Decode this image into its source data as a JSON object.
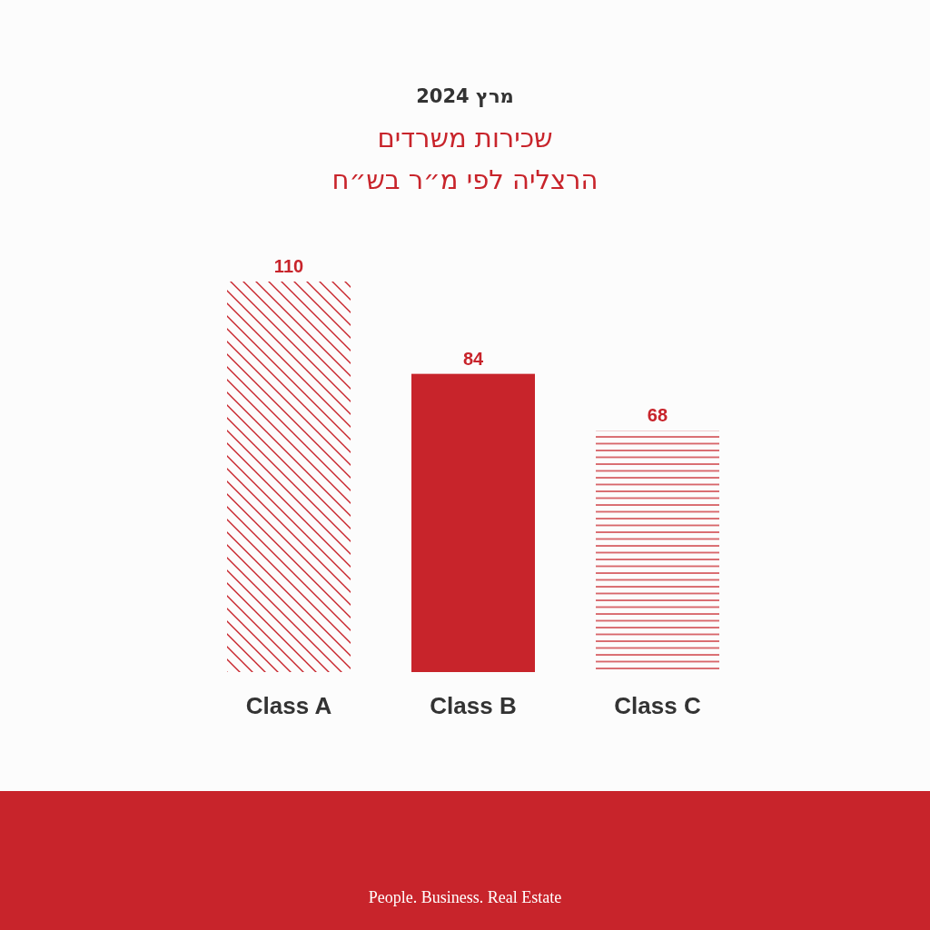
{
  "chart_data": {
    "type": "bar",
    "title": "מרץ 2024",
    "subtitle": "שכירות משרדים\nהרצליה לפי מ״ר בש״ח",
    "categories": [
      "Class A",
      "Class B",
      "Class C"
    ],
    "values": [
      110,
      84,
      68
    ],
    "color": "#c8242b",
    "data_labels": true,
    "annotations": [
      "People. Business. Real Estate"
    ]
  }
}
